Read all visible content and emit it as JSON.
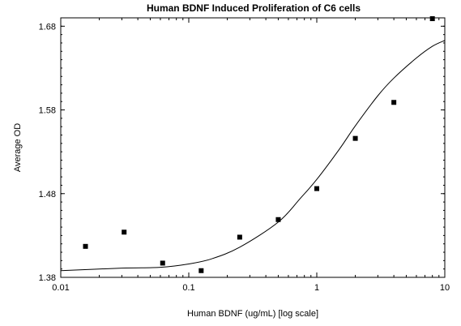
{
  "chart_data": {
    "type": "scatter",
    "title": "Human BDNF Induced Proliferation of C6 cells",
    "xlabel": "Human BDNF (ug/mL) [log scale]",
    "ylabel": "Average OD",
    "xscale": "log",
    "xlim": [
      0.01,
      10
    ],
    "ylim": [
      1.38,
      1.69
    ],
    "grid": false,
    "legend": "none",
    "x_ticks": [
      {
        "value": 0.01,
        "label": "0.01"
      },
      {
        "value": 0.1,
        "label": "0.1"
      },
      {
        "value": 1,
        "label": "1"
      },
      {
        "value": 10,
        "label": "10"
      }
    ],
    "y_ticks": [
      {
        "value": 1.38,
        "label": "1.38"
      },
      {
        "value": 1.48,
        "label": "1.48"
      },
      {
        "value": 1.58,
        "label": "1.58"
      },
      {
        "value": 1.68,
        "label": "1.68"
      }
    ],
    "points": [
      {
        "x": 0.0156,
        "y": 1.417
      },
      {
        "x": 0.03125,
        "y": 1.434
      },
      {
        "x": 0.0625,
        "y": 1.397
      },
      {
        "x": 0.125,
        "y": 1.388
      },
      {
        "x": 0.25,
        "y": 1.428
      },
      {
        "x": 0.5,
        "y": 1.449
      },
      {
        "x": 1,
        "y": 1.486
      },
      {
        "x": 2,
        "y": 1.546
      },
      {
        "x": 4,
        "y": 1.589
      },
      {
        "x": 8,
        "y": 1.689
      }
    ],
    "fit_curve": [
      {
        "x": 0.01,
        "y": 1.388
      },
      {
        "x": 0.03,
        "y": 1.391
      },
      {
        "x": 0.06,
        "y": 1.392
      },
      {
        "x": 0.1,
        "y": 1.396
      },
      {
        "x": 0.15,
        "y": 1.402
      },
      {
        "x": 0.25,
        "y": 1.416
      },
      {
        "x": 0.5,
        "y": 1.446
      },
      {
        "x": 0.75,
        "y": 1.475
      },
      {
        "x": 1,
        "y": 1.497
      },
      {
        "x": 1.5,
        "y": 1.533
      },
      {
        "x": 2,
        "y": 1.561
      },
      {
        "x": 3,
        "y": 1.597
      },
      {
        "x": 4,
        "y": 1.618
      },
      {
        "x": 6,
        "y": 1.642
      },
      {
        "x": 8,
        "y": 1.656
      },
      {
        "x": 10,
        "y": 1.663
      }
    ],
    "colors": {
      "marker": "#000000",
      "line": "#000000",
      "axis": "#000000"
    }
  }
}
